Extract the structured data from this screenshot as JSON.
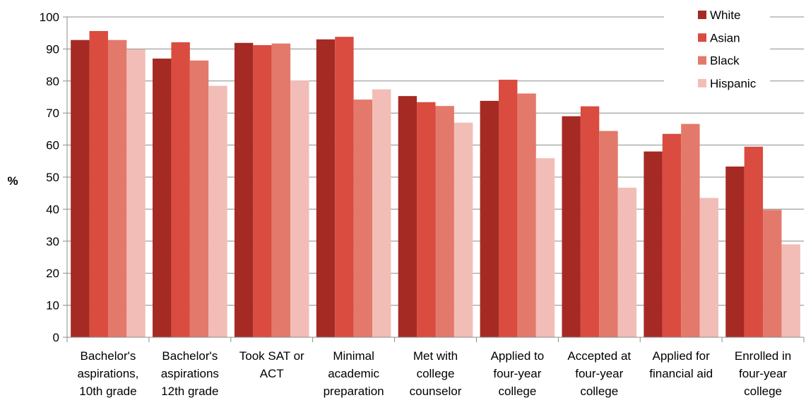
{
  "chart_data": {
    "type": "bar",
    "title": "",
    "xlabel": "",
    "ylabel": "%",
    "ylim": [
      0,
      100
    ],
    "yticks": [
      0,
      10,
      20,
      30,
      40,
      50,
      60,
      70,
      80,
      90,
      100
    ],
    "grid": true,
    "legend_position": "top-right",
    "categories": [
      [
        "Bachelor's",
        "aspirations,",
        "10th grade"
      ],
      [
        "Bachelor's",
        "aspirations",
        "12th grade"
      ],
      [
        "Took SAT or",
        "ACT"
      ],
      [
        "Minimal",
        "academic",
        "preparation"
      ],
      [
        "Met with",
        "college",
        "counselor"
      ],
      [
        "Applied to",
        "four-year",
        "college"
      ],
      [
        "Accepted at",
        "four-year",
        "college"
      ],
      [
        "Applied for",
        "financial aid"
      ],
      [
        "Enrolled in",
        "four-year",
        "college"
      ]
    ],
    "series": [
      {
        "name": "White",
        "color": "#a52a24",
        "values": [
          92.8,
          87.0,
          91.9,
          93.0,
          75.3,
          73.8,
          69.0,
          58.0,
          53.3
        ]
      },
      {
        "name": "Asian",
        "color": "#d94c3f",
        "values": [
          95.6,
          92.1,
          91.2,
          93.8,
          73.4,
          80.4,
          72.1,
          63.5,
          59.5
        ]
      },
      {
        "name": "Black",
        "color": "#e3796b",
        "values": [
          92.8,
          86.4,
          91.7,
          74.2,
          72.2,
          76.1,
          64.4,
          66.6,
          39.8
        ]
      },
      {
        "name": "Hispanic",
        "color": "#f2bdb7",
        "values": [
          89.9,
          78.5,
          80.1,
          77.4,
          67.0,
          55.9,
          46.7,
          43.5,
          29.0
        ]
      }
    ]
  }
}
